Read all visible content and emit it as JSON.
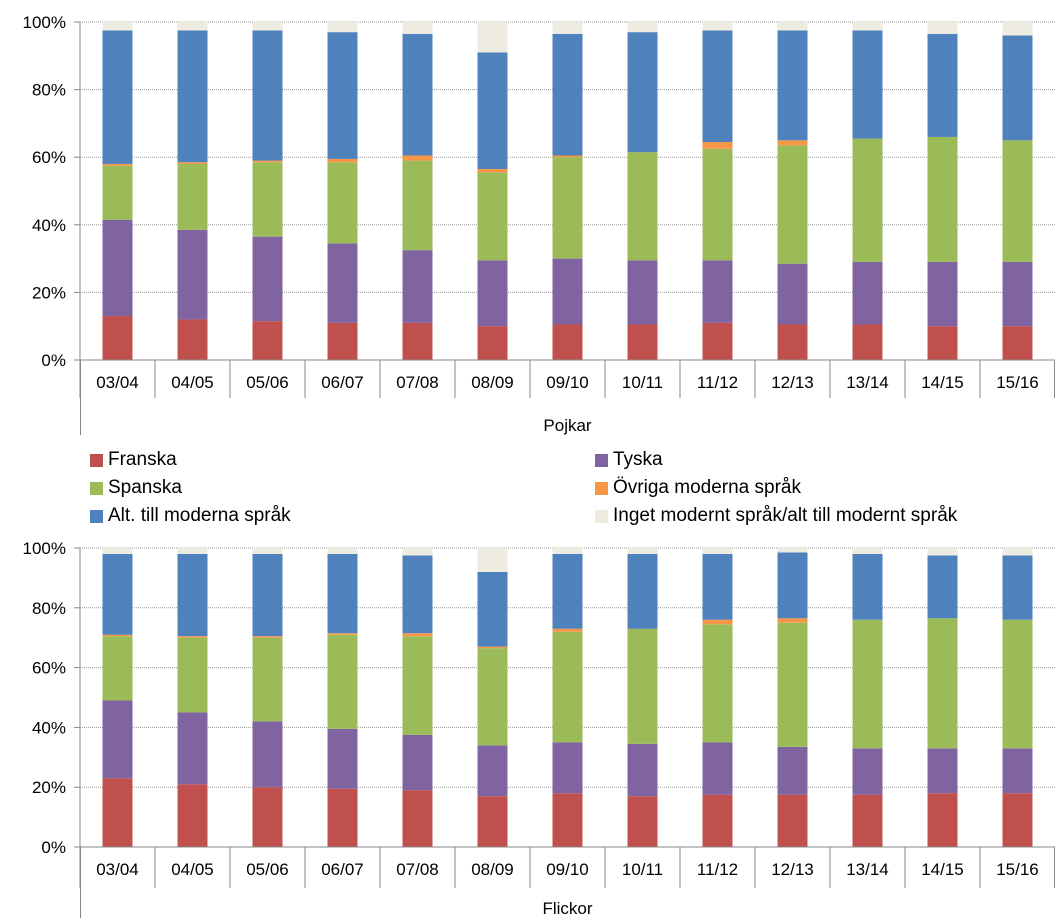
{
  "colors": {
    "franska": "#c0504d",
    "tyska": "#8064a2",
    "spanska": "#9bbb59",
    "ovriga": "#f79646",
    "alt": "#4f81bd",
    "inget": "#eeece1"
  },
  "legend": [
    {
      "key": "franska",
      "label": "Franska",
      "color": "#c0504d"
    },
    {
      "key": "tyska",
      "label": "Tyska",
      "color": "#8064a2"
    },
    {
      "key": "spanska",
      "label": "Spanska",
      "color": "#9bbb59"
    },
    {
      "key": "ovriga",
      "label": "Övriga moderna språk",
      "color": "#f79646"
    },
    {
      "key": "alt",
      "label": "Alt. till moderna språk",
      "color": "#4f81bd"
    },
    {
      "key": "inget",
      "label": "Inget modernt språk/alt till modernt språk",
      "color": "#eeece1"
    }
  ],
  "chart_data": [
    {
      "type": "bar",
      "stacked": true,
      "xlabel": "Pojkar",
      "ylim": [
        0,
        100
      ],
      "yticks": [
        "0%",
        "20%",
        "40%",
        "60%",
        "80%",
        "100%"
      ],
      "categories": [
        "03/04",
        "04/05",
        "05/06",
        "06/07",
        "07/08",
        "08/09",
        "09/10",
        "10/11",
        "11/12",
        "12/13",
        "13/14",
        "14/15",
        "15/16"
      ],
      "series": [
        {
          "name": "Franska",
          "values": [
            13,
            12,
            11.5,
            11,
            11,
            10,
            10.5,
            10.5,
            11,
            10.5,
            10.5,
            10,
            10
          ]
        },
        {
          "name": "Tyska",
          "values": [
            28.5,
            26.5,
            25,
            23.5,
            21.5,
            19.5,
            19.5,
            19,
            18.5,
            18,
            18.5,
            19,
            19
          ]
        },
        {
          "name": "Spanska",
          "values": [
            16,
            19.5,
            22,
            24,
            26.5,
            26,
            30,
            32,
            33,
            35,
            36.5,
            37,
            36
          ]
        },
        {
          "name": "Övriga moderna språk",
          "values": [
            0.5,
            0.5,
            0.5,
            1,
            1.5,
            1,
            0.5,
            0,
            2,
            1.5,
            0,
            0,
            0
          ]
        },
        {
          "name": "Alt. till moderna språk",
          "values": [
            39.5,
            39,
            38.5,
            37.5,
            36,
            34.5,
            36,
            35.5,
            33,
            32.5,
            32,
            30.5,
            31
          ]
        },
        {
          "name": "Inget modernt språk/alt till modernt språk",
          "values": [
            2.5,
            2.5,
            2.5,
            3,
            3.5,
            9,
            3.5,
            3,
            2.5,
            2.5,
            2.5,
            3.5,
            4
          ]
        }
      ]
    },
    {
      "type": "bar",
      "stacked": true,
      "xlabel": "Flickor",
      "ylim": [
        0,
        100
      ],
      "yticks": [
        "0%",
        "20%",
        "40%",
        "60%",
        "80%",
        "100%"
      ],
      "categories": [
        "03/04",
        "04/05",
        "05/06",
        "06/07",
        "07/08",
        "08/09",
        "09/10",
        "10/11",
        "11/12",
        "12/13",
        "13/14",
        "14/15",
        "15/16"
      ],
      "series": [
        {
          "name": "Franska",
          "values": [
            23,
            21,
            20,
            19.5,
            19,
            17,
            18,
            17,
            17.5,
            17.5,
            17.5,
            18,
            18
          ]
        },
        {
          "name": "Tyska",
          "values": [
            26,
            24,
            22,
            20,
            18.5,
            17,
            17,
            17.5,
            17.5,
            16,
            15.5,
            15,
            15
          ]
        },
        {
          "name": "Spanska",
          "values": [
            21.5,
            25,
            28,
            31.5,
            33,
            32.5,
            37,
            38.5,
            39.5,
            41.5,
            43,
            43.5,
            43
          ]
        },
        {
          "name": "Övriga moderna språk",
          "values": [
            0.5,
            0.5,
            0.5,
            0.5,
            1,
            0.5,
            1,
            0,
            1.5,
            1.5,
            0,
            0,
            0
          ]
        },
        {
          "name": "Alt. till moderna språk",
          "values": [
            27,
            27.5,
            27.5,
            26.5,
            26,
            25,
            25,
            25,
            22,
            22,
            22,
            21,
            21.5
          ]
        },
        {
          "name": "Inget modernt språk/alt till modernt språk",
          "values": [
            2,
            2,
            2,
            2,
            2.5,
            8,
            2,
            2,
            2,
            1.5,
            2,
            2.5,
            2.5
          ]
        }
      ]
    }
  ]
}
